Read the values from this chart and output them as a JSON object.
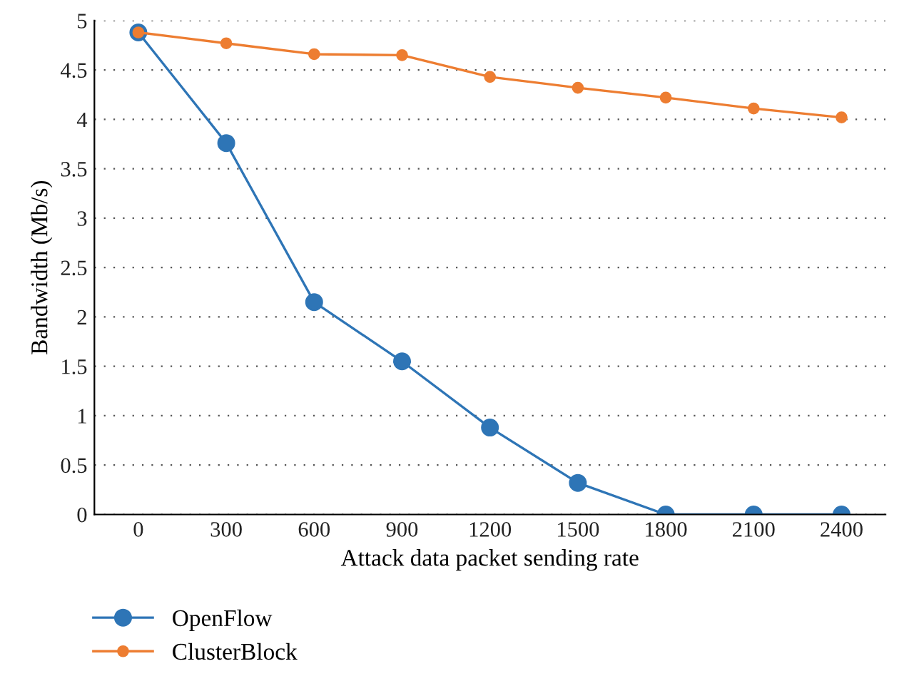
{
  "chart_data": {
    "type": "line",
    "xlabel": "Attack data packet sending rate",
    "ylabel": "Bandwidth (Mb/s)",
    "categories": [
      "0",
      "300",
      "600",
      "900",
      "1200",
      "1500",
      "1800",
      "2100",
      "2400"
    ],
    "series": [
      {
        "name": "OpenFlow",
        "color": "#2e75b6",
        "values": [
          4.88,
          3.76,
          2.15,
          1.55,
          0.88,
          0.32,
          0,
          0,
          0
        ]
      },
      {
        "name": "ClusterBlock",
        "color": "#ed7d31",
        "values": [
          4.88,
          4.77,
          4.66,
          4.65,
          4.43,
          4.32,
          4.22,
          4.11,
          4.02
        ]
      }
    ],
    "ylim": [
      0,
      5
    ],
    "yticks": [
      0,
      0.5,
      1,
      1.5,
      2,
      2.5,
      3,
      3.5,
      4,
      4.5,
      5
    ],
    "grid": "y",
    "legend": "bottom left",
    "marker": "circle",
    "line_style": "solid"
  }
}
